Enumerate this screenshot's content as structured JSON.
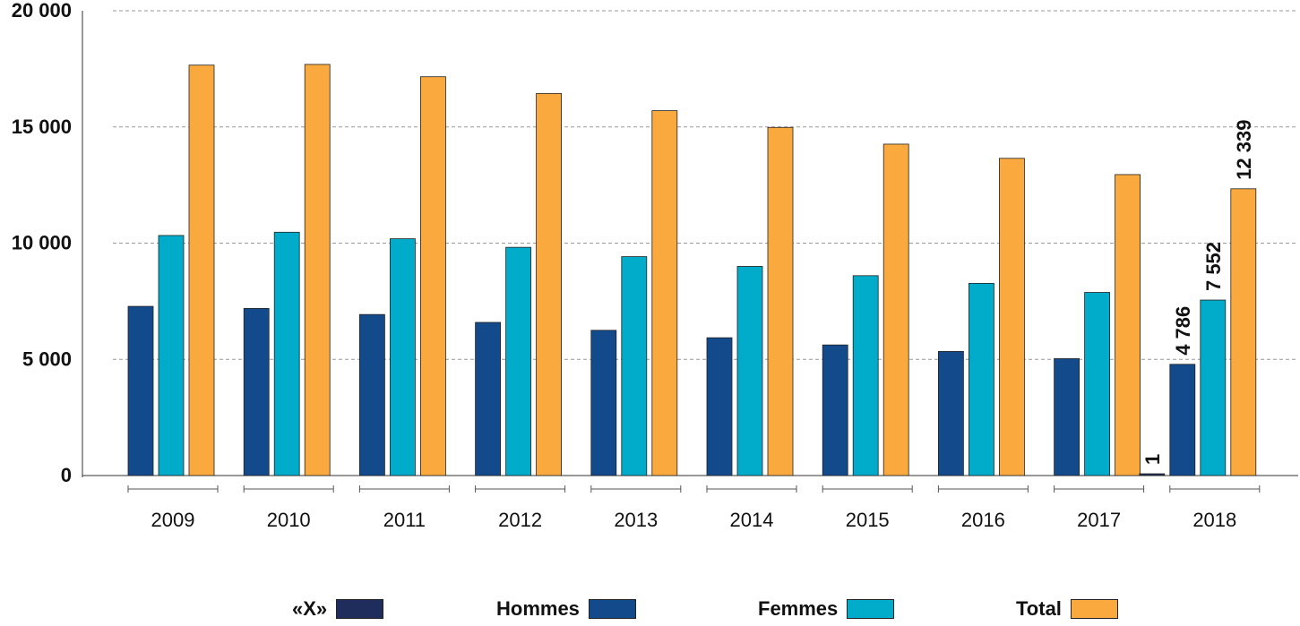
{
  "chart_data": {
    "type": "bar",
    "categories": [
      "2009",
      "2010",
      "2011",
      "2012",
      "2013",
      "2014",
      "2015",
      "2016",
      "2017",
      "2018"
    ],
    "series": [
      {
        "name": "«X»",
        "color": "#1f2d5c",
        "values": [
          null,
          null,
          null,
          null,
          null,
          null,
          null,
          null,
          null,
          1
        ]
      },
      {
        "name": "Hommes",
        "color": "#124a8c",
        "values": [
          7280,
          7190,
          6930,
          6590,
          6250,
          5930,
          5620,
          5340,
          5030,
          4786
        ]
      },
      {
        "name": "Femmes",
        "color": "#00acca",
        "values": [
          10330,
          10470,
          10190,
          9820,
          9420,
          9000,
          8600,
          8270,
          7880,
          7552
        ]
      },
      {
        "name": "Total",
        "color": "#f9a93e",
        "values": [
          17660,
          17690,
          17160,
          16440,
          15700,
          14980,
          14260,
          13650,
          12950,
          12339
        ]
      }
    ],
    "data_labels": [
      {
        "category": "2018",
        "series": "«X»",
        "text": "1"
      },
      {
        "category": "2018",
        "series": "Hommes",
        "text": "4 786"
      },
      {
        "category": "2018",
        "series": "Femmes",
        "text": "7 552"
      },
      {
        "category": "2018",
        "series": "Total",
        "text": "12 339"
      }
    ],
    "yticks": [
      {
        "value": 0,
        "label": "0"
      },
      {
        "value": 5000,
        "label": "5 000"
      },
      {
        "value": 10000,
        "label": "10 000"
      },
      {
        "value": 15000,
        "label": "15 000"
      },
      {
        "value": 20000,
        "label": "20 000"
      }
    ],
    "ylim": [
      0,
      20000
    ],
    "title": "",
    "xlabel": "",
    "ylabel": "",
    "grid": "horizontal dashed",
    "legend_position": "bottom"
  }
}
